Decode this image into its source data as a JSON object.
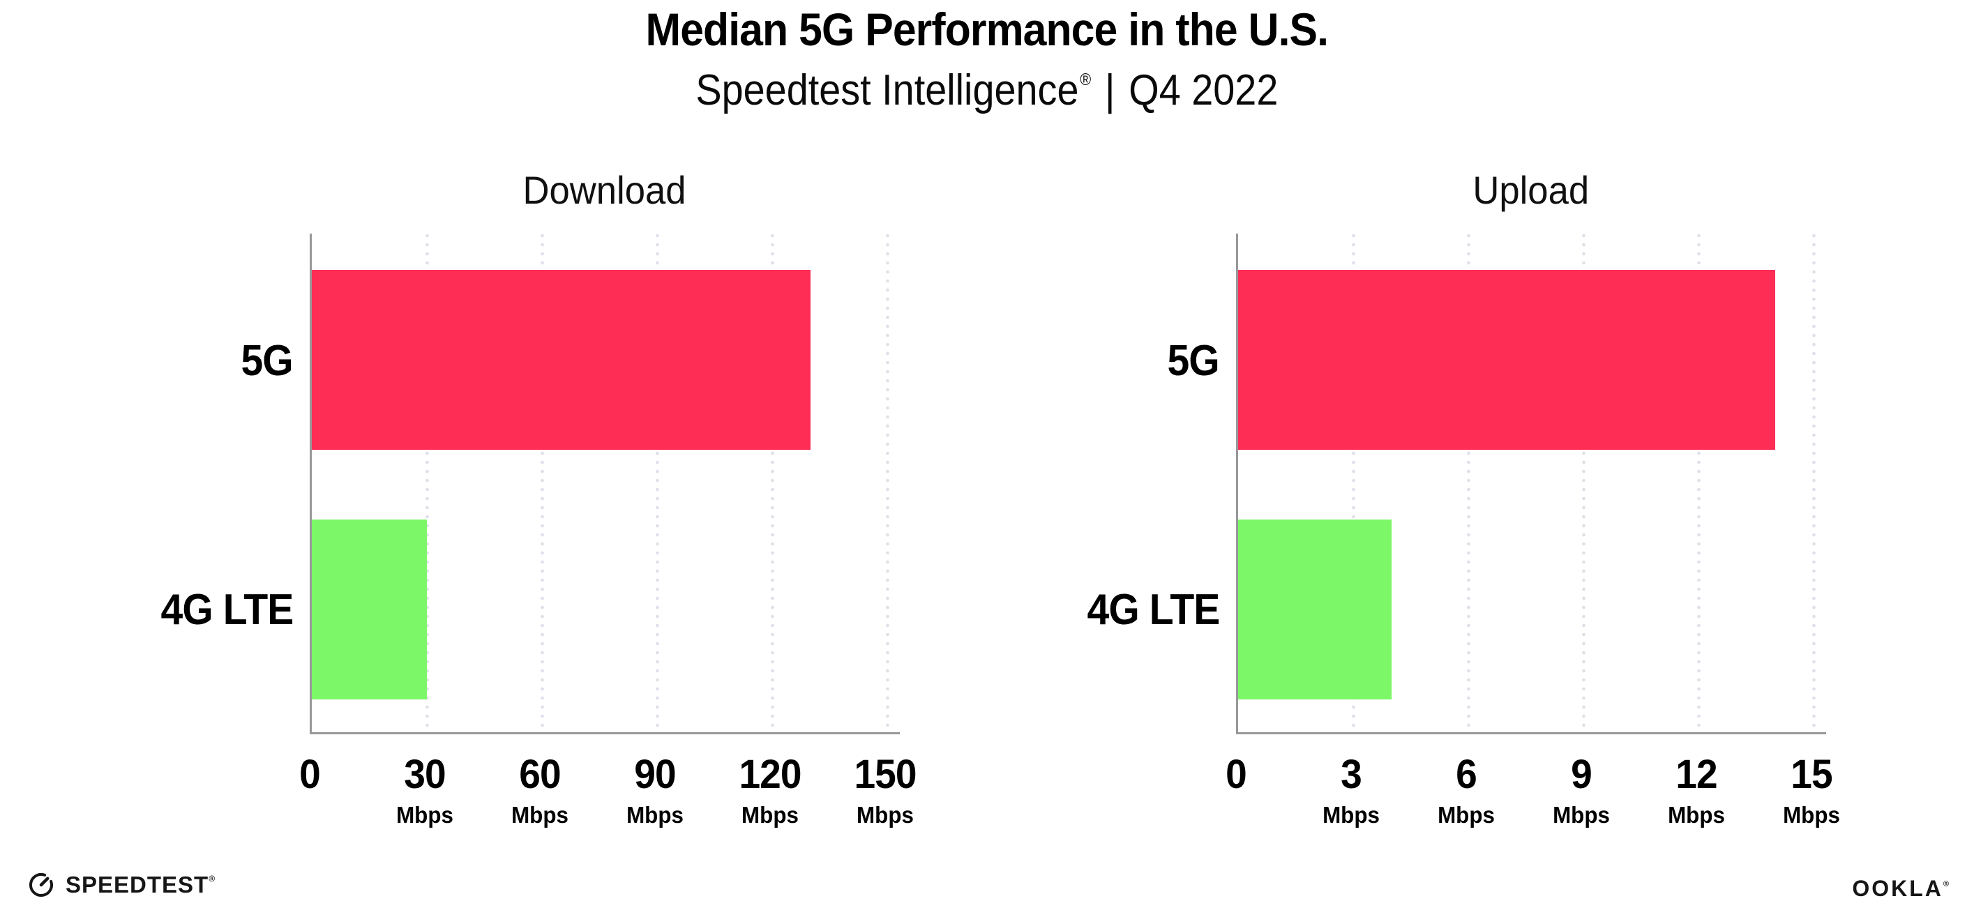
{
  "header": {
    "title": "Median 5G Performance in the U.S.",
    "subtitle_brand": "Speedtest Intelligence",
    "subtitle_reg": "®",
    "subtitle_separator": "|",
    "subtitle_period": "Q4 2022"
  },
  "chart_data": [
    {
      "type": "bar",
      "orientation": "horizontal",
      "title": "Download",
      "categories": [
        "5G",
        "4G LTE"
      ],
      "values": [
        130,
        30
      ],
      "unit": "Mbps",
      "xlim": [
        0,
        150
      ],
      "tick_labels": [
        "0",
        "30",
        "60",
        "90",
        "120",
        "150"
      ],
      "grid": "dotted vertical gridlines at each tick",
      "legend": "none",
      "bar_colors": [
        "#fe2d55",
        "#7cf767"
      ]
    },
    {
      "type": "bar",
      "orientation": "horizontal",
      "title": "Upload",
      "categories": [
        "5G",
        "4G LTE"
      ],
      "values": [
        14,
        4
      ],
      "unit": "Mbps",
      "xlim": [
        0,
        15
      ],
      "tick_labels": [
        "0",
        "3",
        "6",
        "9",
        "12",
        "15"
      ],
      "grid": "dotted vertical gridlines at each tick",
      "legend": "none",
      "bar_colors": [
        "#fe2d55",
        "#7cf767"
      ]
    }
  ],
  "footer": {
    "speedtest_logo_text": "SPEEDTEST",
    "speedtest_reg": "®",
    "ookla_logo_text": "OOKLA",
    "ookla_reg": "®"
  },
  "colors": {
    "bar_5g": "#fe2d55",
    "bar_4g_lte": "#7cf767",
    "axis_line": "#98989b",
    "grid_dots": "#dfdfe9",
    "text": "#000000",
    "background": "#ffffff"
  }
}
